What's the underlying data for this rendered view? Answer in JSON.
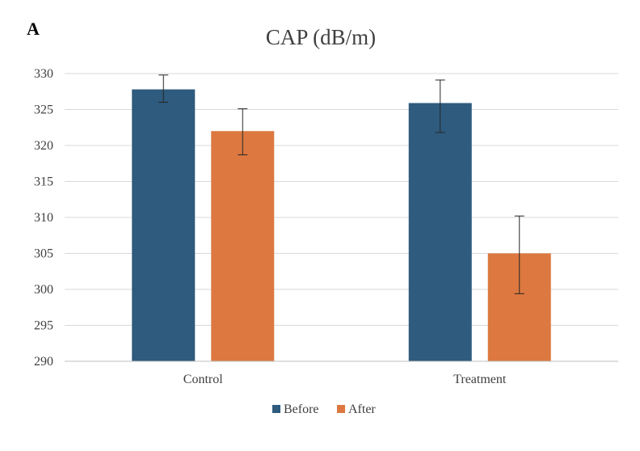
{
  "panel_label": "A",
  "colors": {
    "before": "#2e5b7e",
    "after": "#dc7840"
  },
  "chart_data": {
    "type": "bar",
    "title": "CAP (dB/m)",
    "xlabel": "",
    "ylabel": "",
    "categories": [
      "Control",
      "Treatment"
    ],
    "ylim": [
      290,
      330
    ],
    "yticks": [
      290,
      295,
      300,
      305,
      310,
      315,
      320,
      325,
      330
    ],
    "grid": true,
    "legend_position": "bottom",
    "series": [
      {
        "name": "Before",
        "values": [
          327.8,
          325.9
        ],
        "error_low": [
          326.0,
          321.8
        ],
        "error_high": [
          329.8,
          329.1
        ],
        "color": "#2e5b7e"
      },
      {
        "name": "After",
        "values": [
          322.0,
          305.0
        ],
        "error_low": [
          318.7,
          299.4
        ],
        "error_high": [
          325.1,
          310.2
        ],
        "color": "#dc7840"
      }
    ]
  }
}
